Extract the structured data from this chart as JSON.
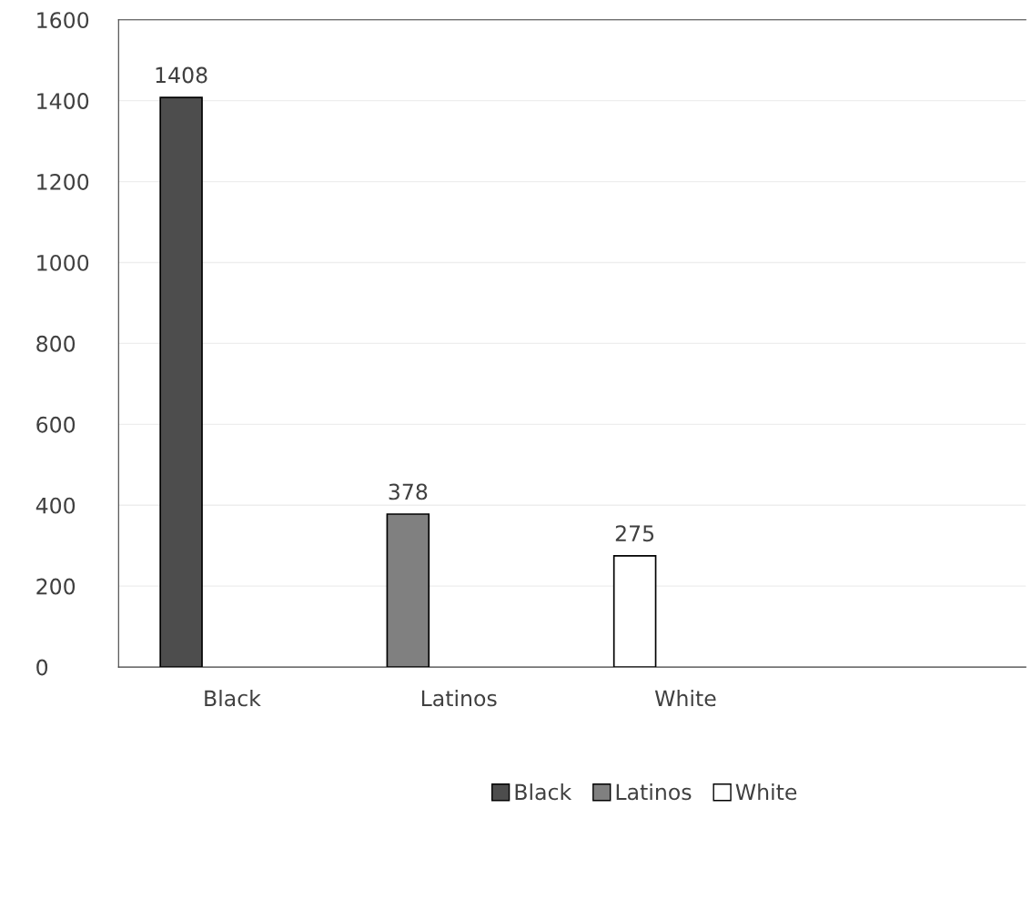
{
  "chart_data": {
    "type": "bar",
    "categories": [
      "Black",
      "Latinos",
      "White",
      null
    ],
    "series": [
      {
        "name": "Black",
        "color": "#4d4d4d",
        "values": [
          1408,
          null,
          null,
          null
        ]
      },
      {
        "name": "Latinos",
        "color": "#808080",
        "values": [
          null,
          378,
          null,
          null
        ]
      },
      {
        "name": "White",
        "color": "#ffffff",
        "values": [
          null,
          null,
          275,
          null
        ]
      }
    ],
    "ylim": [
      0,
      1600
    ],
    "yticks": [
      0,
      200,
      400,
      600,
      800,
      1000,
      1200,
      1400,
      1600
    ],
    "grid": "y",
    "legend": "bottom",
    "data_labels": true
  }
}
